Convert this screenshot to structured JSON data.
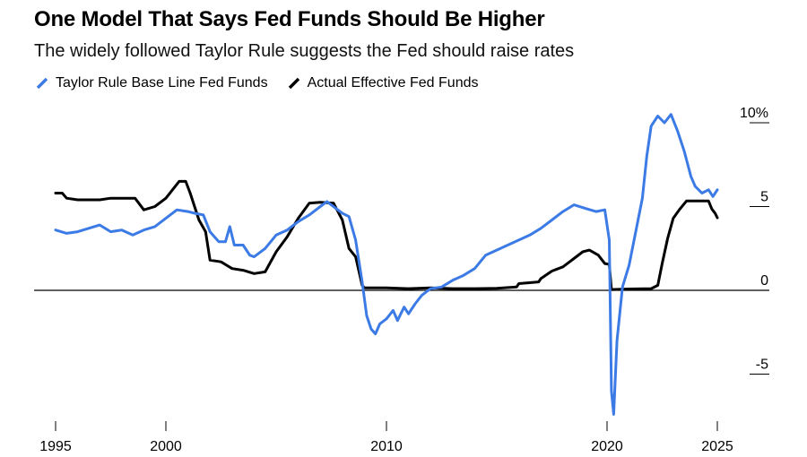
{
  "chart_data": {
    "type": "line",
    "title": "One Model That Says Fed Funds Should Be Higher",
    "subtitle": "The widely followed Taylor Rule suggests the Fed should raise rates",
    "xlabel": "",
    "ylabel": "",
    "x_ticks": [
      "1995",
      "2000",
      "2010",
      "2020",
      "2025"
    ],
    "x_tick_values": [
      1995,
      2000,
      2010,
      2020,
      2025
    ],
    "y_ticks": [
      "10%",
      "5",
      "0",
      "-5"
    ],
    "y_tick_values": [
      10,
      5,
      0,
      -5
    ],
    "xlim": [
      1995,
      2025
    ],
    "ylim": [
      -7.7,
      11
    ],
    "grid": false,
    "legend_position": "top-left",
    "series": [
      {
        "name": "Taylor Rule Base Line Fed Funds",
        "color": "#3c7be6",
        "points": [
          [
            1995.0,
            3.6
          ],
          [
            1995.5,
            3.4
          ],
          [
            1996.0,
            3.5
          ],
          [
            1996.5,
            3.7
          ],
          [
            1997.0,
            3.9
          ],
          [
            1997.5,
            3.5
          ],
          [
            1998.0,
            3.6
          ],
          [
            1998.5,
            3.3
          ],
          [
            1999.0,
            3.6
          ],
          [
            1999.5,
            3.8
          ],
          [
            2000.0,
            4.3
          ],
          [
            2000.5,
            4.8
          ],
          [
            2001.0,
            4.7
          ],
          [
            2001.3,
            4.6
          ],
          [
            2001.7,
            4.5
          ],
          [
            2002.0,
            3.5
          ],
          [
            2002.4,
            2.9
          ],
          [
            2002.7,
            2.9
          ],
          [
            2002.9,
            3.8
          ],
          [
            2003.1,
            2.7
          ],
          [
            2003.5,
            2.7
          ],
          [
            2003.8,
            2.1
          ],
          [
            2004.0,
            2.0
          ],
          [
            2004.5,
            2.5
          ],
          [
            2005.0,
            3.3
          ],
          [
            2005.5,
            3.6
          ],
          [
            2006.0,
            4.1
          ],
          [
            2006.5,
            4.5
          ],
          [
            2007.0,
            5.0
          ],
          [
            2007.3,
            5.3
          ],
          [
            2007.7,
            4.9
          ],
          [
            2008.0,
            4.6
          ],
          [
            2008.3,
            4.4
          ],
          [
            2008.6,
            3.0
          ],
          [
            2008.9,
            0.5
          ],
          [
            2009.1,
            -1.5
          ],
          [
            2009.3,
            -2.3
          ],
          [
            2009.5,
            -2.6
          ],
          [
            2009.7,
            -2.0
          ],
          [
            2010.0,
            -1.7
          ],
          [
            2010.3,
            -1.2
          ],
          [
            2010.5,
            -1.8
          ],
          [
            2010.8,
            -1.0
          ],
          [
            2011.0,
            -1.4
          ],
          [
            2011.3,
            -0.8
          ],
          [
            2011.6,
            -0.3
          ],
          [
            2012.0,
            0.1
          ],
          [
            2012.5,
            0.2
          ],
          [
            2013.0,
            0.6
          ],
          [
            2013.5,
            0.9
          ],
          [
            2014.0,
            1.3
          ],
          [
            2014.5,
            2.1
          ],
          [
            2015.0,
            2.4
          ],
          [
            2015.5,
            2.7
          ],
          [
            2016.0,
            3.0
          ],
          [
            2016.5,
            3.3
          ],
          [
            2017.0,
            3.7
          ],
          [
            2017.5,
            4.2
          ],
          [
            2018.0,
            4.7
          ],
          [
            2018.5,
            5.1
          ],
          [
            2019.0,
            4.9
          ],
          [
            2019.5,
            4.7
          ],
          [
            2019.9,
            4.8
          ],
          [
            2020.1,
            3.0
          ],
          [
            2020.2,
            -6.0
          ],
          [
            2020.3,
            -7.4
          ],
          [
            2020.45,
            -3.0
          ],
          [
            2020.7,
            0.2
          ],
          [
            2021.0,
            1.5
          ],
          [
            2021.3,
            3.5
          ],
          [
            2021.6,
            5.5
          ],
          [
            2021.8,
            8.0
          ],
          [
            2022.0,
            9.8
          ],
          [
            2022.3,
            10.4
          ],
          [
            2022.6,
            10.0
          ],
          [
            2022.9,
            10.5
          ],
          [
            2023.2,
            9.5
          ],
          [
            2023.5,
            8.3
          ],
          [
            2023.8,
            6.8
          ],
          [
            2024.0,
            6.2
          ],
          [
            2024.3,
            5.8
          ],
          [
            2024.6,
            6.0
          ],
          [
            2024.8,
            5.6
          ],
          [
            2025.0,
            6.0
          ]
        ]
      },
      {
        "name": "Actual Effective Fed Funds",
        "color": "#000000",
        "points": [
          [
            1995.0,
            5.8
          ],
          [
            1995.3,
            5.8
          ],
          [
            1995.5,
            5.5
          ],
          [
            1996.0,
            5.4
          ],
          [
            1997.0,
            5.4
          ],
          [
            1997.5,
            5.5
          ],
          [
            1998.0,
            5.5
          ],
          [
            1998.6,
            5.5
          ],
          [
            1999.0,
            4.8
          ],
          [
            1999.5,
            5.0
          ],
          [
            2000.0,
            5.5
          ],
          [
            2000.3,
            6.0
          ],
          [
            2000.6,
            6.5
          ],
          [
            2000.9,
            6.5
          ],
          [
            2001.1,
            5.8
          ],
          [
            2001.5,
            4.2
          ],
          [
            2001.8,
            3.5
          ],
          [
            2002.0,
            1.8
          ],
          [
            2002.5,
            1.7
          ],
          [
            2003.0,
            1.3
          ],
          [
            2003.5,
            1.2
          ],
          [
            2004.0,
            1.0
          ],
          [
            2004.5,
            1.1
          ],
          [
            2005.0,
            2.3
          ],
          [
            2005.5,
            3.2
          ],
          [
            2006.0,
            4.3
          ],
          [
            2006.5,
            5.2
          ],
          [
            2007.0,
            5.25
          ],
          [
            2007.6,
            5.2
          ],
          [
            2008.0,
            4.2
          ],
          [
            2008.3,
            2.5
          ],
          [
            2008.6,
            2.0
          ],
          [
            2008.9,
            0.3
          ],
          [
            2009.0,
            0.15
          ],
          [
            2010.0,
            0.15
          ],
          [
            2011.0,
            0.1
          ],
          [
            2012.0,
            0.15
          ],
          [
            2013.0,
            0.1
          ],
          [
            2014.0,
            0.1
          ],
          [
            2015.0,
            0.12
          ],
          [
            2015.9,
            0.2
          ],
          [
            2016.0,
            0.4
          ],
          [
            2016.9,
            0.5
          ],
          [
            2017.0,
            0.7
          ],
          [
            2017.5,
            1.15
          ],
          [
            2018.0,
            1.4
          ],
          [
            2018.5,
            1.9
          ],
          [
            2018.9,
            2.3
          ],
          [
            2019.2,
            2.4
          ],
          [
            2019.6,
            2.1
          ],
          [
            2019.9,
            1.6
          ],
          [
            2020.1,
            1.55
          ],
          [
            2020.2,
            0.05
          ],
          [
            2021.0,
            0.08
          ],
          [
            2022.0,
            0.1
          ],
          [
            2022.3,
            0.3
          ],
          [
            2022.5,
            1.6
          ],
          [
            2022.75,
            3.1
          ],
          [
            2023.0,
            4.3
          ],
          [
            2023.3,
            4.85
          ],
          [
            2023.6,
            5.33
          ],
          [
            2024.0,
            5.33
          ],
          [
            2024.6,
            5.33
          ],
          [
            2024.75,
            4.85
          ],
          [
            2024.9,
            4.6
          ],
          [
            2025.0,
            4.33
          ]
        ]
      }
    ]
  }
}
